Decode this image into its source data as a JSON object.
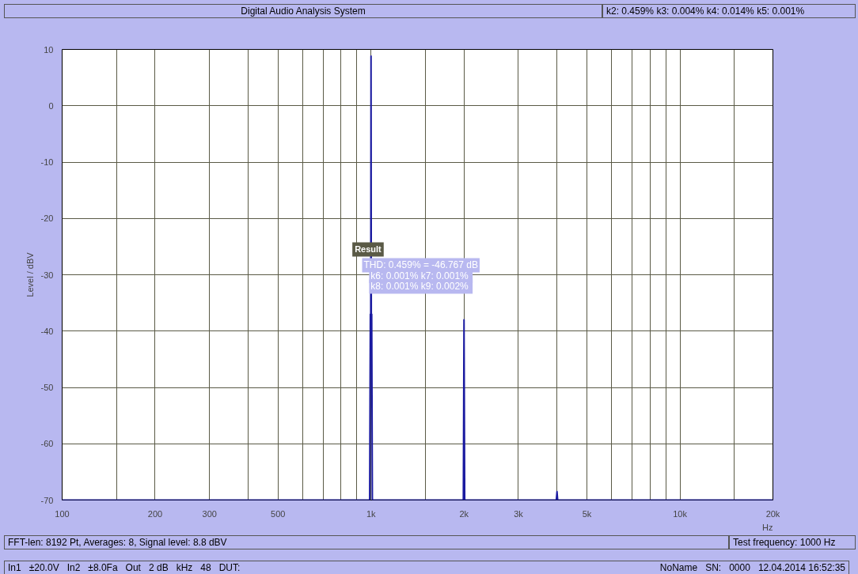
{
  "chart_data": {
    "type": "line",
    "title": "Digital Audio Analysis System",
    "xlabel": "Hz",
    "ylabel": "Level / dBV",
    "log": "x",
    "grid": true,
    "line_style": "solid",
    "marker": "none",
    "xlim": [
      100,
      20000
    ],
    "ylim": [
      -70,
      10
    ],
    "xticks": [
      100,
      {
        "value": 150,
        "label": null
      },
      200,
      300,
      {
        "value": 400,
        "label": null
      },
      500,
      {
        "value": 600,
        "label": null
      },
      {
        "value": 700,
        "label": null
      },
      {
        "value": 800,
        "label": null
      },
      {
        "value": 900,
        "label": null
      },
      {
        "value": 1000,
        "label": "1k"
      },
      {
        "value": 1500,
        "label": null
      },
      {
        "value": 2000,
        "label": "2k"
      },
      {
        "value": 3000,
        "label": "3k"
      },
      {
        "value": 4000,
        "label": null
      },
      {
        "value": 5000,
        "label": "5k"
      },
      {
        "value": 6000,
        "label": null
      },
      {
        "value": 7000,
        "label": null
      },
      {
        "value": 8000,
        "label": null
      },
      {
        "value": 9000,
        "label": null
      },
      {
        "value": 10000,
        "label": "10k"
      },
      {
        "value": 15000,
        "label": null
      },
      {
        "value": 20000,
        "label": "20k"
      }
    ],
    "yticks": [
      -70,
      -60,
      -50,
      -40,
      -30,
      -20,
      -10,
      0,
      10
    ],
    "series": [
      {
        "color": "#1a1aa0",
        "x": [
          100,
          990,
          995,
          998,
          1000,
          1002,
          1005,
          1010,
          1990,
          2000,
          2010,
          3980,
          4000,
          4020,
          20000
        ],
        "values": [
          -70,
          -70,
          -37,
          -37,
          8.8,
          -37,
          -37,
          -70,
          -70,
          -38,
          -70,
          -70,
          -68.5,
          -70,
          -70
        ]
      }
    ],
    "annotations": [
      "k2: 0.459%  k3: 0.004%  k4: 0.014%  k5: 0.001%",
      "Result",
      "THD: 0.459% = -46.767 dB",
      "k6: 0.001%  k7: 0.001%",
      "k8: 0.001%  k9: 0.002%",
      "FFT-len: 8192 Pt, Averages: 8, Signal level:  8.8 dBV",
      "Test frequency: 1000 Hz",
      "In1",
      "±20.0V",
      "In2",
      "±8.0Fa",
      "Out",
      "2 dB",
      "kHz",
      "48",
      "DUT:",
      "NoName",
      "SN:",
      "0000",
      "12.04.2014 16:52:35"
    ]
  }
}
